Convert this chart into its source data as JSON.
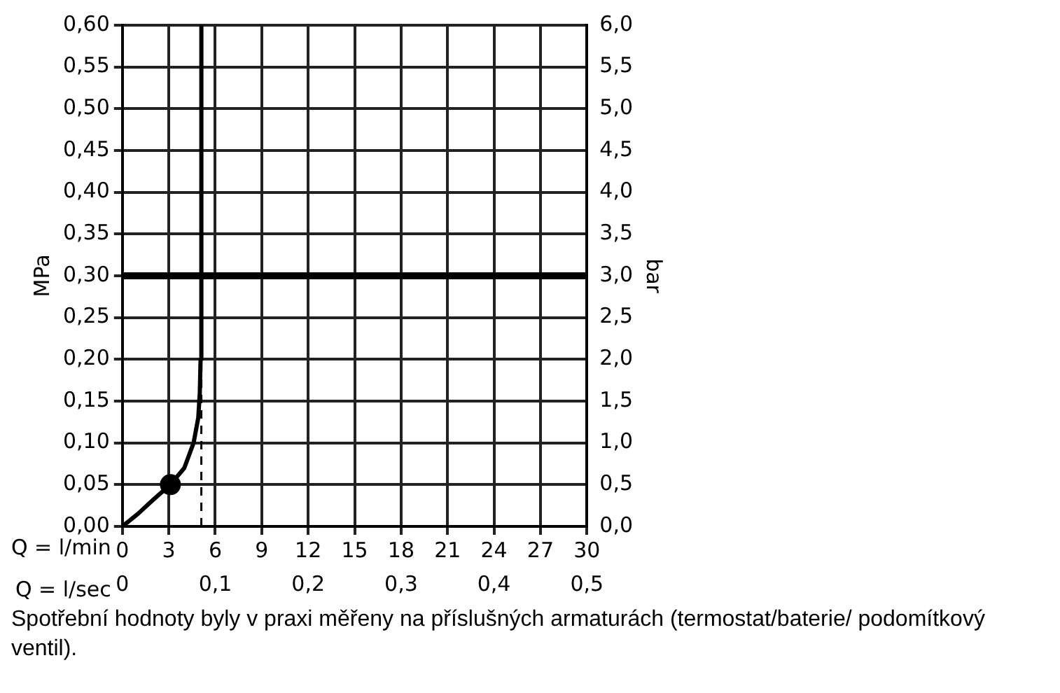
{
  "chart_data": {
    "type": "line",
    "xlabel": "Q = l/min",
    "ylabel": "MPa",
    "y2label": "bar",
    "x2label": "Q = l/sec",
    "xlim": [
      0,
      30
    ],
    "xticks": [
      0,
      3,
      6,
      9,
      12,
      15,
      18,
      21,
      24,
      27,
      30
    ],
    "x2lim": [
      0,
      0.5
    ],
    "x2ticks": [
      0,
      {
        "value": 0.1,
        "label": "0,1"
      },
      {
        "value": 0.2,
        "label": "0,2"
      },
      {
        "value": 0.3,
        "label": "0,3"
      },
      {
        "value": 0.4,
        "label": "0,4"
      },
      {
        "value": 0.5,
        "label": "0,5"
      }
    ],
    "ylim": [
      0,
      0.6
    ],
    "yticks": [
      {
        "value": 0,
        "label": "0,00"
      },
      {
        "value": 0.05,
        "label": "0,05"
      },
      {
        "value": 0.1,
        "label": "0,10"
      },
      {
        "value": 0.15,
        "label": "0,15"
      },
      {
        "value": 0.2,
        "label": "0,20"
      },
      {
        "value": 0.25,
        "label": "0,25"
      },
      {
        "value": 0.3,
        "label": "0,30"
      },
      {
        "value": 0.35,
        "label": "0,35"
      },
      {
        "value": 0.4,
        "label": "0,40"
      },
      {
        "value": 0.45,
        "label": "0,45"
      },
      {
        "value": 0.5,
        "label": "0,50"
      },
      {
        "value": 0.55,
        "label": "0,55"
      },
      {
        "value": 0.6,
        "label": "0,60"
      }
    ],
    "y2lim": [
      0,
      6
    ],
    "y2ticks": [
      {
        "value": 0,
        "label": "0,0"
      },
      {
        "value": 0.5,
        "label": "0,5"
      },
      {
        "value": 1,
        "label": "1,0"
      },
      {
        "value": 1.5,
        "label": "1,5"
      },
      {
        "value": 2,
        "label": "2,0"
      },
      {
        "value": 2.5,
        "label": "2,5"
      },
      {
        "value": 3,
        "label": "3,0"
      },
      {
        "value": 3.5,
        "label": "3,5"
      },
      {
        "value": 4,
        "label": "4,0"
      },
      {
        "value": 4.5,
        "label": "4,5"
      },
      {
        "value": 5,
        "label": "5,0"
      },
      {
        "value": 5.5,
        "label": "5,5"
      },
      {
        "value": 6,
        "label": "6,0"
      }
    ],
    "series": [
      {
        "type": "line",
        "color": "#000000",
        "marker": "none",
        "x": [
          0,
          1,
          2,
          3.1,
          4,
          4.6,
          4.9,
          5.0,
          5.05,
          5.1
        ],
        "values": [
          0,
          0.015,
          0.032,
          0.05,
          0.07,
          0.1,
          0.13,
          0.16,
          0.2,
          0.6
        ]
      },
      {
        "type": "scatter",
        "color": "#000000",
        "marker": "circle",
        "x": [
          3.1
        ],
        "values": [
          0.05
        ]
      }
    ],
    "ref_lines": [
      {
        "axis": "y",
        "value": 0.3,
        "color": "#000000",
        "line_style": "solid"
      },
      {
        "axis": "x",
        "value": 5.1,
        "color": "#000000",
        "line_style": "dashed"
      }
    ],
    "grid": true,
    "legend": false,
    "annotations": [
      "Spotřební hodnoty byly v praxi měřeny na příslušných armaturách (termostat/baterie/ podomítkový ventil)."
    ]
  }
}
